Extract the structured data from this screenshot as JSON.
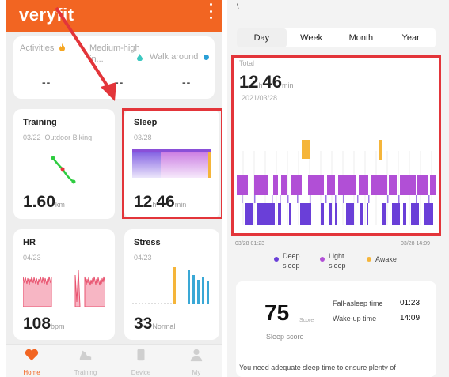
{
  "app": {
    "brand": "veryfit"
  },
  "activity": [
    {
      "label": "Activities",
      "value": "--",
      "icon": "flame-icon",
      "color": "#f5a623"
    },
    {
      "label": "Medium-high in...",
      "value": "--",
      "icon": "drop-icon",
      "color": "#3cc8c0"
    },
    {
      "label": "Walk around",
      "value": "--",
      "icon": "clock-icon",
      "color": "#2a9fd6"
    }
  ],
  "training": {
    "title": "Training",
    "date": "03/22",
    "type": "Outdoor Biking",
    "value": "1.60",
    "unit": "km"
  },
  "sleep": {
    "title": "Sleep",
    "date": "03/28",
    "hours": "12",
    "h_unit": "h",
    "minutes": "46",
    "m_unit": "min"
  },
  "hr": {
    "title": "HR",
    "date": "04/23",
    "value": "108",
    "unit": "bpm"
  },
  "stress": {
    "title": "Stress",
    "date": "04/23",
    "value": "33",
    "unit": "Normal"
  },
  "tabs": [
    {
      "label": "Home",
      "icon": "heart-icon"
    },
    {
      "label": "Training",
      "icon": "shoe-icon"
    },
    {
      "label": "Device",
      "icon": "watch-icon"
    },
    {
      "label": "My",
      "icon": "person-icon"
    }
  ],
  "detail": {
    "back": "\\",
    "periods": [
      "Day",
      "Week",
      "Month",
      "Year"
    ],
    "selected_period": "Day",
    "total_label": "Total",
    "total_hours": "12",
    "total_h_unit": "h",
    "total_minutes": "46",
    "total_m_unit": "min",
    "date": "2021/03/28",
    "axis_start": "03/28 01:23",
    "axis_end": "03/28 14:09",
    "legend": [
      {
        "label": "Deep sleep",
        "color": "#6a3fd8"
      },
      {
        "label": "Light sleep",
        "color": "#b14fd6"
      },
      {
        "label": "Awake",
        "color": "#f5b53a"
      }
    ],
    "score": "75",
    "score_unit": "Score",
    "score_label": "Sleep score",
    "fall_asleep_label": "Fall-asleep time",
    "fall_asleep_value": "01:23",
    "wake_up_label": "Wake-up time",
    "wake_up_value": "14:09",
    "advice": "You need adequate sleep time to ensure plenty of"
  }
}
